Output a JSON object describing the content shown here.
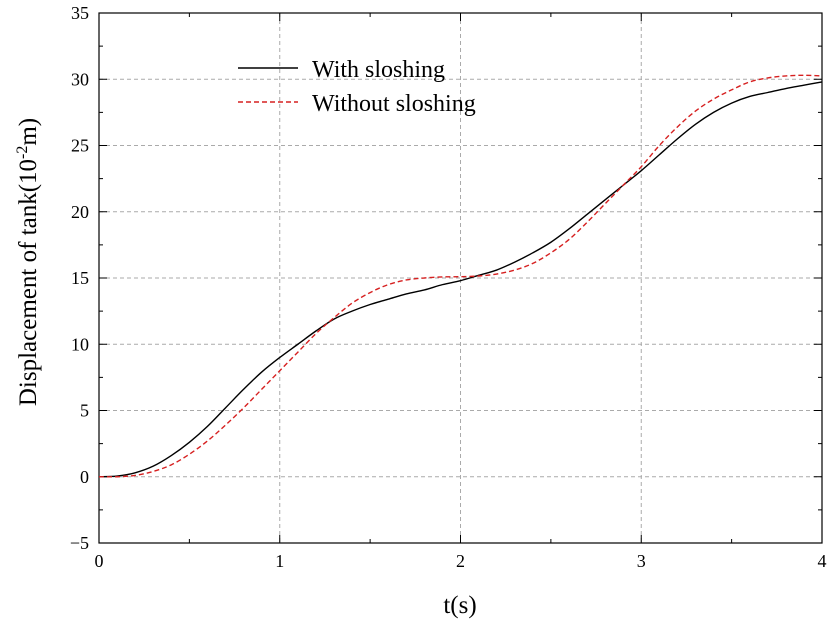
{
  "chart_data": {
    "type": "line",
    "title": "",
    "xlabel": "t(s)",
    "ylabel_parts": [
      "Displacement of tank(10",
      "-2",
      "m)"
    ],
    "xlim": [
      0,
      4
    ],
    "ylim": [
      -5,
      35
    ],
    "xticks": [
      0,
      1,
      2,
      3,
      4
    ],
    "yticks": [
      -5,
      0,
      5,
      10,
      15,
      20,
      25,
      30,
      35
    ],
    "x_tick_labels": [
      "0",
      "1",
      "2",
      "3",
      "4"
    ],
    "y_tick_labels": [
      "−5",
      "0",
      "5",
      "10",
      "15",
      "20",
      "25",
      "30",
      "35"
    ],
    "grid": true,
    "legend_position": "top-center",
    "series": [
      {
        "name": "With sloshing",
        "color": "#000000",
        "style": "solid",
        "x": [
          0,
          0.1,
          0.2,
          0.3,
          0.4,
          0.5,
          0.6,
          0.7,
          0.8,
          0.9,
          1.0,
          1.1,
          1.2,
          1.3,
          1.4,
          1.5,
          1.6,
          1.7,
          1.8,
          1.9,
          2.0,
          2.1,
          2.2,
          2.3,
          2.4,
          2.5,
          2.6,
          2.7,
          2.8,
          2.9,
          3.0,
          3.1,
          3.2,
          3.3,
          3.4,
          3.5,
          3.6,
          3.7,
          3.8,
          3.9,
          4.0
        ],
        "y": [
          0,
          0.05,
          0.3,
          0.8,
          1.6,
          2.6,
          3.8,
          5.2,
          6.6,
          7.9,
          9.0,
          10.0,
          11.0,
          11.9,
          12.5,
          13.0,
          13.4,
          13.8,
          14.1,
          14.5,
          14.8,
          15.2,
          15.6,
          16.2,
          16.9,
          17.7,
          18.7,
          19.8,
          20.9,
          22.0,
          23.1,
          24.3,
          25.5,
          26.6,
          27.5,
          28.2,
          28.7,
          29.0,
          29.3,
          29.55,
          29.8
        ]
      },
      {
        "name": "Without sloshing",
        "color": "#d62020",
        "style": "dashed",
        "x": [
          0,
          0.1,
          0.2,
          0.3,
          0.4,
          0.5,
          0.6,
          0.7,
          0.8,
          0.9,
          1.0,
          1.1,
          1.2,
          1.3,
          1.4,
          1.5,
          1.6,
          1.7,
          1.8,
          1.9,
          2.0,
          2.1,
          2.2,
          2.3,
          2.4,
          2.5,
          2.6,
          2.7,
          2.8,
          2.9,
          3.0,
          3.1,
          3.2,
          3.3,
          3.4,
          3.5,
          3.6,
          3.7,
          3.8,
          3.9,
          4.0
        ],
        "y": [
          0,
          0.0,
          0.1,
          0.4,
          0.9,
          1.7,
          2.7,
          3.9,
          5.2,
          6.6,
          8.0,
          9.4,
          10.8,
          12.0,
          13.1,
          13.9,
          14.5,
          14.85,
          15.0,
          15.08,
          15.1,
          15.15,
          15.3,
          15.6,
          16.1,
          16.9,
          17.9,
          19.2,
          20.6,
          22.0,
          23.4,
          25.0,
          26.4,
          27.6,
          28.5,
          29.2,
          29.8,
          30.1,
          30.25,
          30.3,
          30.25
        ]
      }
    ]
  }
}
